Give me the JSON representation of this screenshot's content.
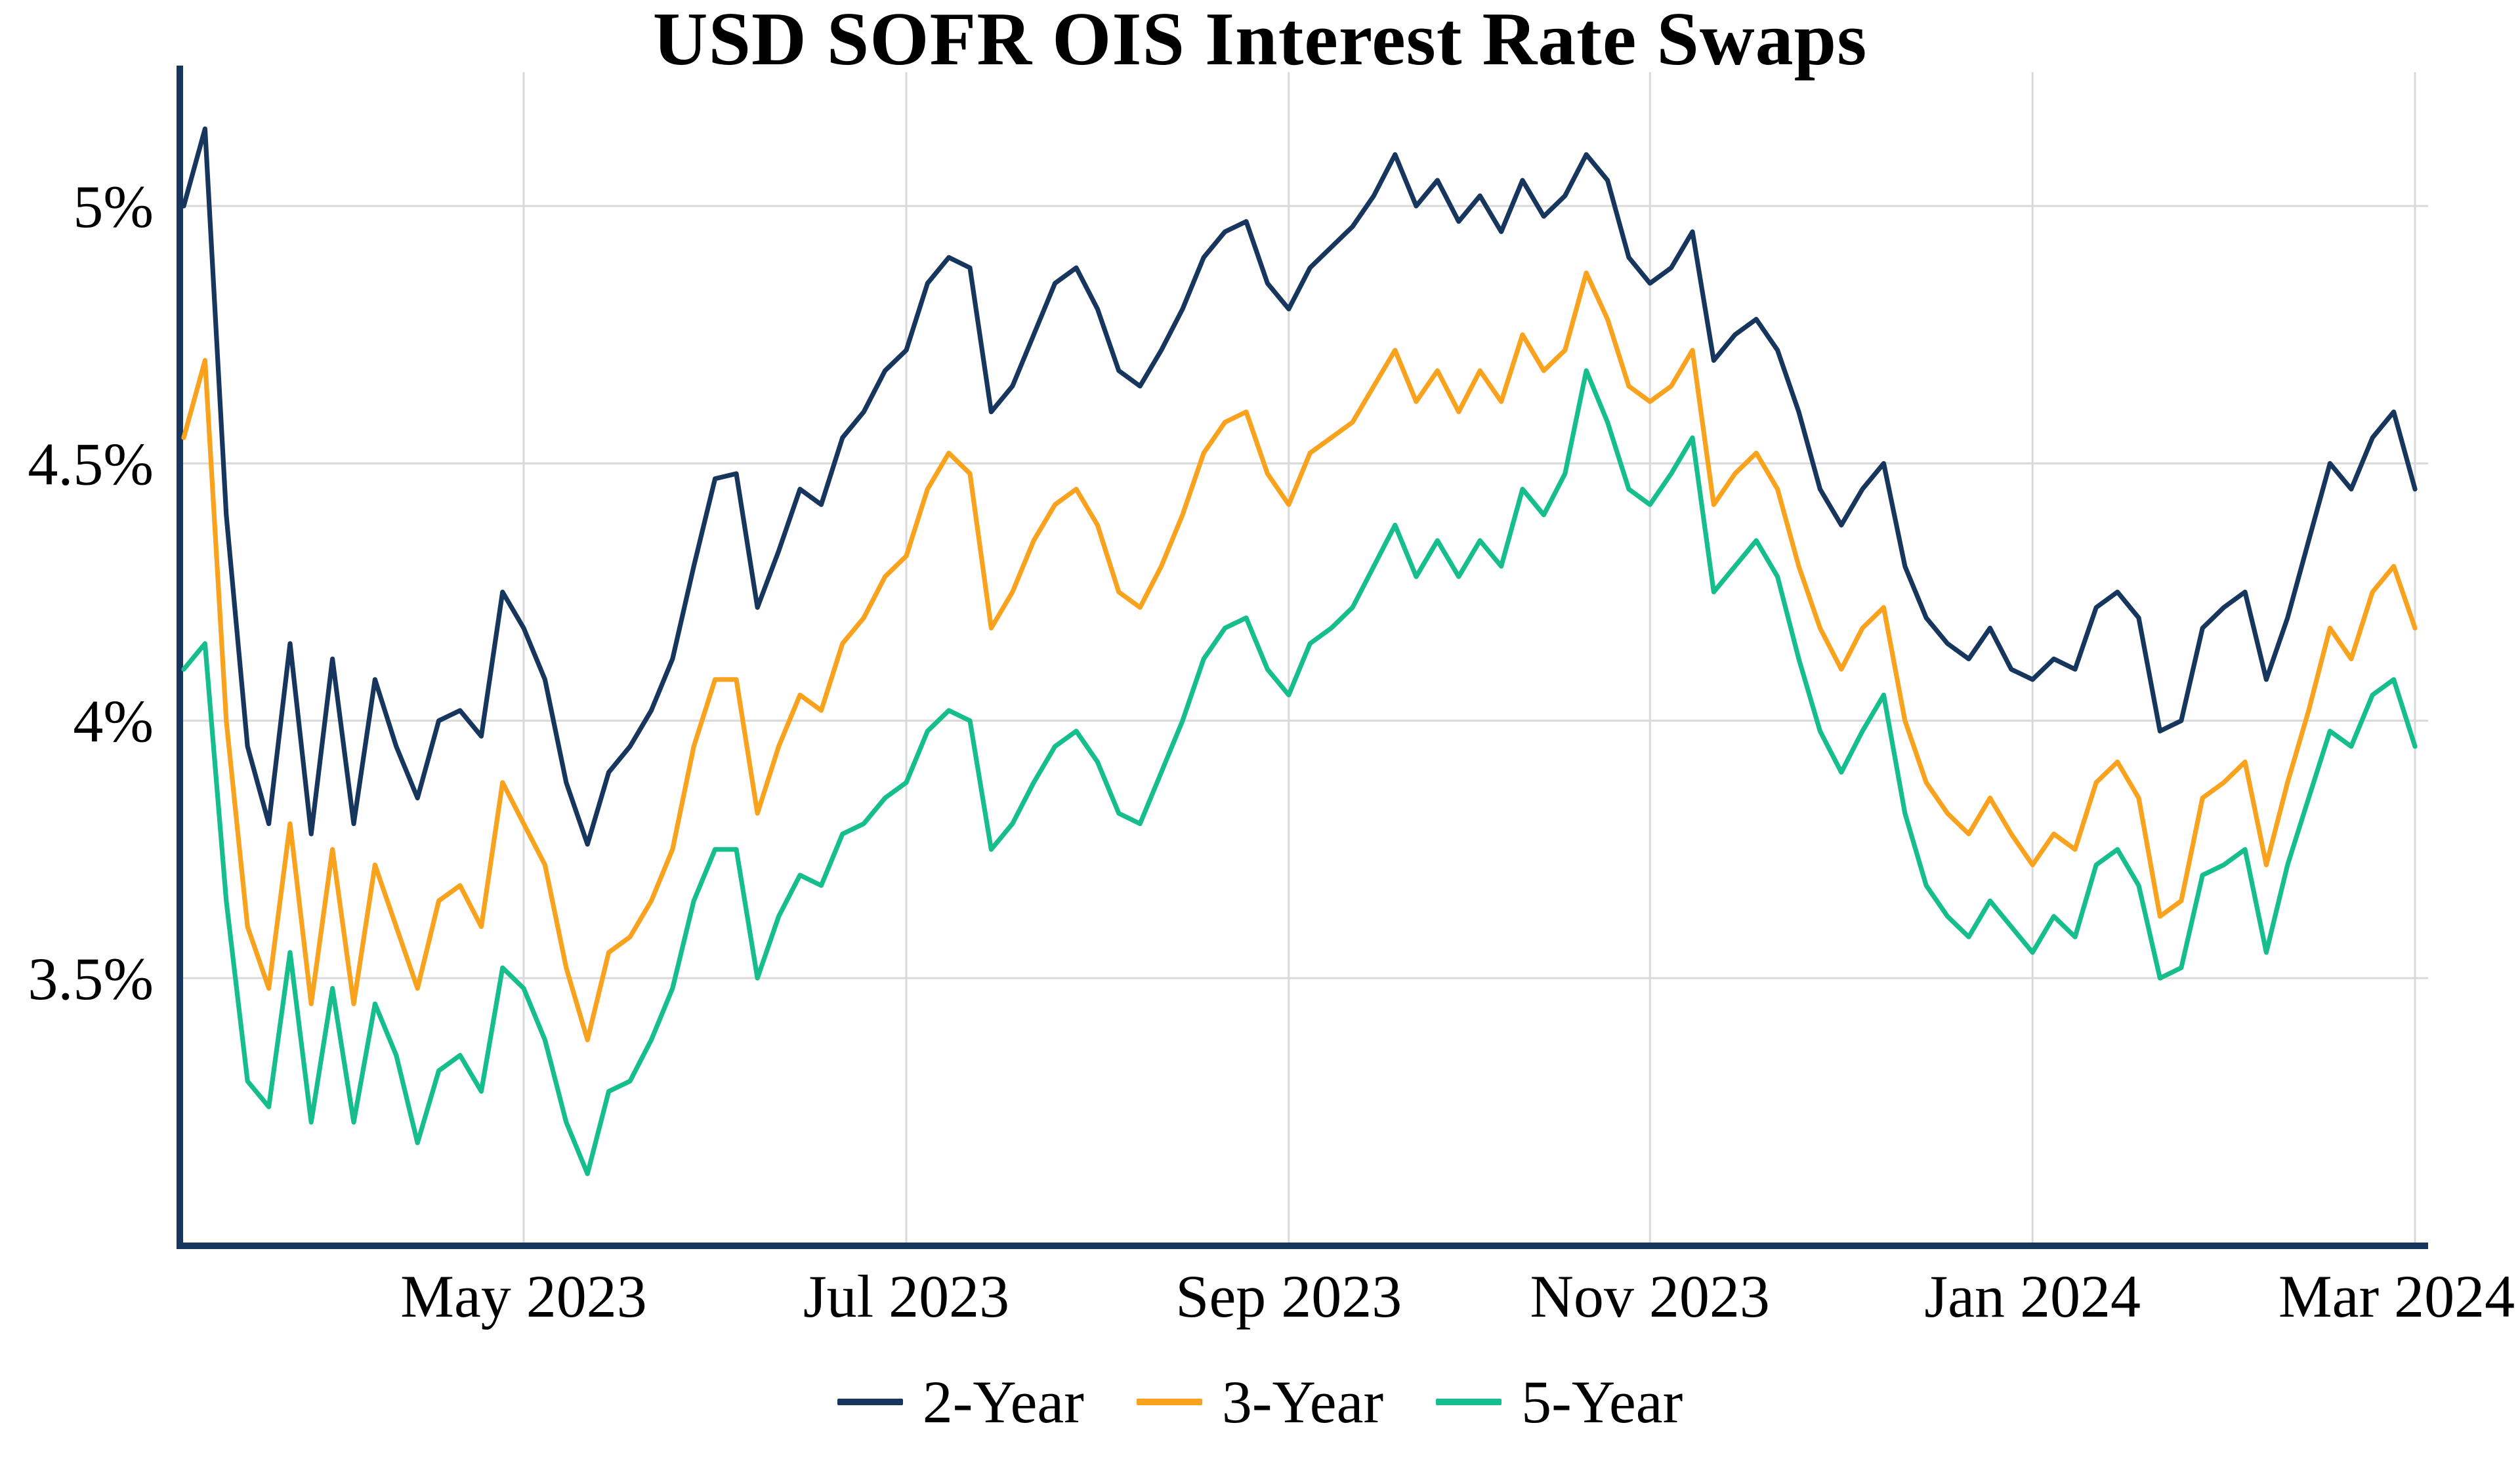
{
  "chart_data": {
    "type": "line",
    "title": "USD SOFR OIS Interest Rate Swaps",
    "xlabel": "",
    "ylabel": "",
    "x_range": [
      "Mar 2023",
      "Mar 2024"
    ],
    "ylim": [
      2.98,
      5.26
    ],
    "grid": true,
    "legend_position": "bottom",
    "colors": {
      "grid": "#D9D9D9",
      "axis": "#17365D"
    },
    "y_ticks": [
      {
        "value": 3.5,
        "label": "3.5%"
      },
      {
        "value": 4.0,
        "label": "4%"
      },
      {
        "value": 4.5,
        "label": "4.5%"
      },
      {
        "value": 5.0,
        "label": "5%"
      }
    ],
    "x_ticks": [
      {
        "index": 16,
        "label": "May 2023"
      },
      {
        "index": 34,
        "label": "Jul 2023"
      },
      {
        "index": 52,
        "label": "Sep 2023"
      },
      {
        "index": 69,
        "label": "Nov 2023"
      },
      {
        "index": 87,
        "label": "Jan 2024"
      },
      {
        "index": 105,
        "label": "Mar 2024"
      }
    ],
    "series": [
      {
        "name": "2-Year",
        "color": "#17365D",
        "values": [
          5.0,
          5.15,
          4.4,
          3.95,
          3.8,
          4.15,
          3.78,
          4.12,
          3.8,
          4.08,
          3.95,
          3.85,
          4.0,
          4.02,
          3.97,
          4.25,
          4.18,
          4.08,
          3.88,
          3.76,
          3.9,
          3.95,
          4.02,
          4.12,
          4.3,
          4.47,
          4.48,
          4.22,
          4.33,
          4.45,
          4.42,
          4.55,
          4.6,
          4.68,
          4.72,
          4.85,
          4.9,
          4.88,
          4.6,
          4.65,
          4.75,
          4.85,
          4.88,
          4.8,
          4.68,
          4.65,
          4.72,
          4.8,
          4.9,
          4.95,
          4.97,
          4.85,
          4.8,
          4.88,
          4.92,
          4.96,
          5.02,
          5.1,
          5.0,
          5.05,
          4.97,
          5.02,
          4.95,
          5.05,
          4.98,
          5.02,
          5.1,
          5.05,
          4.9,
          4.85,
          4.88,
          4.95,
          4.7,
          4.75,
          4.78,
          4.72,
          4.6,
          4.45,
          4.38,
          4.45,
          4.5,
          4.3,
          4.2,
          4.15,
          4.12,
          4.18,
          4.1,
          4.08,
          4.12,
          4.1,
          4.22,
          4.25,
          4.2,
          3.98,
          4.0,
          4.18,
          4.22,
          4.25,
          4.08,
          4.2,
          4.35,
          4.5,
          4.45,
          4.55,
          4.6,
          4.45
        ]
      },
      {
        "name": "3-Year",
        "color": "#F9A21D",
        "values": [
          4.55,
          4.7,
          4.0,
          3.6,
          3.48,
          3.8,
          3.45,
          3.75,
          3.45,
          3.72,
          3.6,
          3.48,
          3.65,
          3.68,
          3.6,
          3.88,
          3.8,
          3.72,
          3.52,
          3.38,
          3.55,
          3.58,
          3.65,
          3.75,
          3.95,
          4.08,
          4.08,
          3.82,
          3.95,
          4.05,
          4.02,
          4.15,
          4.2,
          4.28,
          4.32,
          4.45,
          4.52,
          4.48,
          4.18,
          4.25,
          4.35,
          4.42,
          4.45,
          4.38,
          4.25,
          4.22,
          4.3,
          4.4,
          4.52,
          4.58,
          4.6,
          4.48,
          4.42,
          4.52,
          4.55,
          4.58,
          4.65,
          4.72,
          4.62,
          4.68,
          4.6,
          4.68,
          4.62,
          4.75,
          4.68,
          4.72,
          4.87,
          4.78,
          4.65,
          4.62,
          4.65,
          4.72,
          4.42,
          4.48,
          4.52,
          4.45,
          4.3,
          4.18,
          4.1,
          4.18,
          4.22,
          4.0,
          3.88,
          3.82,
          3.78,
          3.85,
          3.78,
          3.72,
          3.78,
          3.75,
          3.88,
          3.92,
          3.85,
          3.62,
          3.65,
          3.85,
          3.88,
          3.92,
          3.72,
          3.88,
          4.02,
          4.18,
          4.12,
          4.25,
          4.3,
          4.18
        ]
      },
      {
        "name": "5-Year",
        "color": "#15BE8C",
        "values": [
          4.1,
          4.15,
          3.65,
          3.3,
          3.25,
          3.55,
          3.22,
          3.48,
          3.22,
          3.45,
          3.35,
          3.18,
          3.32,
          3.35,
          3.28,
          3.52,
          3.48,
          3.38,
          3.22,
          3.12,
          3.28,
          3.3,
          3.38,
          3.48,
          3.65,
          3.75,
          3.75,
          3.5,
          3.62,
          3.7,
          3.68,
          3.78,
          3.8,
          3.85,
          3.88,
          3.98,
          4.02,
          4.0,
          3.75,
          3.8,
          3.88,
          3.95,
          3.98,
          3.92,
          3.82,
          3.8,
          3.9,
          4.0,
          4.12,
          4.18,
          4.2,
          4.1,
          4.05,
          4.15,
          4.18,
          4.22,
          4.3,
          4.38,
          4.28,
          4.35,
          4.28,
          4.35,
          4.3,
          4.45,
          4.4,
          4.48,
          4.68,
          4.58,
          4.45,
          4.42,
          4.48,
          4.55,
          4.25,
          4.3,
          4.35,
          4.28,
          4.12,
          3.98,
          3.9,
          3.98,
          4.05,
          3.82,
          3.68,
          3.62,
          3.58,
          3.65,
          3.6,
          3.55,
          3.62,
          3.58,
          3.72,
          3.75,
          3.68,
          3.5,
          3.52,
          3.7,
          3.72,
          3.75,
          3.55,
          3.72,
          3.85,
          3.98,
          3.95,
          4.05,
          4.08,
          3.95
        ]
      }
    ]
  }
}
